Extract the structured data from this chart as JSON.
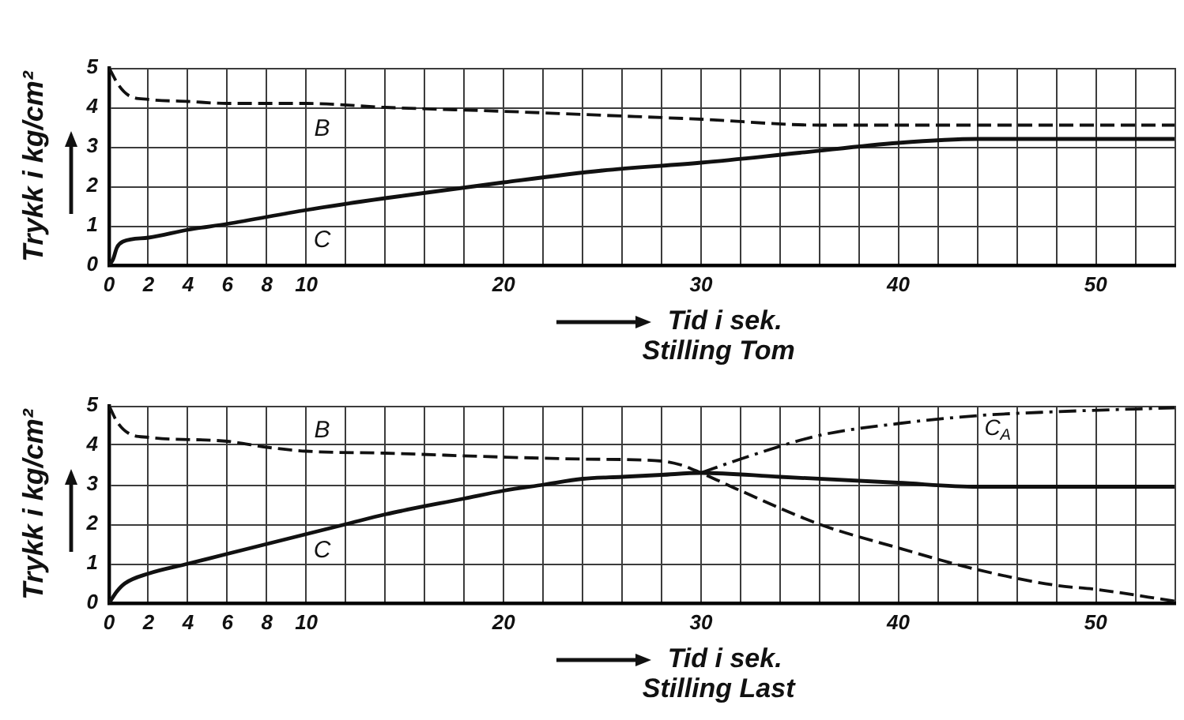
{
  "chart_data": [
    {
      "type": "line",
      "title": "Stilling Tom",
      "xlabel": "Tid i sek.",
      "ylabel": "Trykk i kg/cm²",
      "xlim": [
        0,
        54
      ],
      "ylim": [
        0,
        5
      ],
      "xticks": [
        0,
        2,
        4,
        6,
        8,
        10,
        {
          "value": 12,
          "label": null
        },
        {
          "value": 14,
          "label": null
        },
        {
          "value": 16,
          "label": null
        },
        {
          "value": 18,
          "label": null
        },
        20,
        {
          "value": 22,
          "label": null
        },
        {
          "value": 24,
          "label": null
        },
        {
          "value": 26,
          "label": null
        },
        {
          "value": 28,
          "label": null
        },
        30,
        {
          "value": 32,
          "label": null
        },
        {
          "value": 34,
          "label": null
        },
        {
          "value": 36,
          "label": null
        },
        {
          "value": 38,
          "label": null
        },
        40,
        {
          "value": 42,
          "label": null
        },
        {
          "value": 44,
          "label": null
        },
        {
          "value": 46,
          "label": null
        },
        {
          "value": 48,
          "label": null
        },
        50,
        {
          "value": 52,
          "label": null
        },
        {
          "value": 54,
          "label": null
        }
      ],
      "yticks": [
        0,
        1,
        2,
        3,
        4,
        5
      ],
      "grid": true,
      "legend": false,
      "marker": "none",
      "series": [
        {
          "name": "B",
          "color": "#111111",
          "line_style": "dashed",
          "x": [
            0,
            0.5,
            1,
            2,
            4,
            6,
            10,
            14,
            20,
            25,
            30,
            36,
            40,
            54
          ],
          "values": [
            5,
            4.55,
            4.3,
            4.2,
            4.15,
            4.1,
            4.1,
            4.0,
            3.9,
            3.8,
            3.7,
            3.55,
            3.55,
            3.55
          ]
        },
        {
          "name": "C",
          "color": "#111111",
          "line_style": "solid",
          "x": [
            0,
            0.2,
            0.4,
            0.7,
            2,
            4,
            6,
            10,
            14,
            20,
            25,
            30,
            35,
            40,
            44,
            48,
            54
          ],
          "values": [
            0,
            0.15,
            0.45,
            0.6,
            0.7,
            0.9,
            1.05,
            1.4,
            1.7,
            2.1,
            2.4,
            2.6,
            2.85,
            3.1,
            3.2,
            3.2,
            3.2
          ]
        }
      ]
    },
    {
      "type": "line",
      "title": "Stilling Last",
      "xlabel": "Tid i sek.",
      "ylabel": "Trykk i kg/cm²",
      "xlim": [
        0,
        54
      ],
      "ylim": [
        0,
        5
      ],
      "xticks": [
        0,
        2,
        4,
        6,
        8,
        10,
        {
          "value": 12,
          "label": null
        },
        {
          "value": 14,
          "label": null
        },
        {
          "value": 16,
          "label": null
        },
        {
          "value": 18,
          "label": null
        },
        20,
        {
          "value": 22,
          "label": null
        },
        {
          "value": 24,
          "label": null
        },
        {
          "value": 26,
          "label": null
        },
        {
          "value": 28,
          "label": null
        },
        30,
        {
          "value": 32,
          "label": null
        },
        {
          "value": 34,
          "label": null
        },
        {
          "value": 36,
          "label": null
        },
        {
          "value": 38,
          "label": null
        },
        40,
        {
          "value": 42,
          "label": null
        },
        {
          "value": 44,
          "label": null
        },
        {
          "value": 46,
          "label": null
        },
        {
          "value": 48,
          "label": null
        },
        50,
        {
          "value": 52,
          "label": null
        },
        {
          "value": 54,
          "label": null
        }
      ],
      "yticks": [
        0,
        1,
        2,
        3,
        4,
        5
      ],
      "grid": true,
      "legend": false,
      "marker": "none",
      "series": [
        {
          "name": "B",
          "color": "#111111",
          "line_style": "dashed",
          "x": [
            0,
            0.4,
            1,
            2,
            6,
            8,
            10,
            14,
            20,
            24,
            28,
            29,
            30,
            32,
            36,
            40,
            44,
            48,
            50,
            54
          ],
          "values": [
            5,
            4.6,
            4.3,
            4.2,
            4.1,
            3.95,
            3.85,
            3.8,
            3.7,
            3.65,
            3.6,
            3.5,
            3.3,
            2.85,
            2.0,
            1.4,
            0.85,
            0.45,
            0.35,
            0.05
          ]
        },
        {
          "name": "C",
          "color": "#111111",
          "line_style": "solid",
          "x": [
            0,
            0.4,
            0.8,
            2,
            4,
            6,
            8,
            10,
            12,
            14,
            18,
            20,
            22,
            24,
            26,
            28,
            30,
            34,
            40,
            44,
            54
          ],
          "values": [
            0,
            0.3,
            0.5,
            0.75,
            1.0,
            1.25,
            1.5,
            1.75,
            2.0,
            2.25,
            2.65,
            2.85,
            3.0,
            3.15,
            3.2,
            3.25,
            3.3,
            3.2,
            3.05,
            2.95,
            2.95
          ]
        },
        {
          "name": "C$_{A}$",
          "color": "#111111",
          "line_style": "dashdot",
          "x": [
            30,
            32,
            36,
            40,
            44,
            48,
            54
          ],
          "values": [
            3.3,
            3.65,
            4.25,
            4.55,
            4.75,
            4.85,
            4.95
          ]
        }
      ]
    }
  ]
}
